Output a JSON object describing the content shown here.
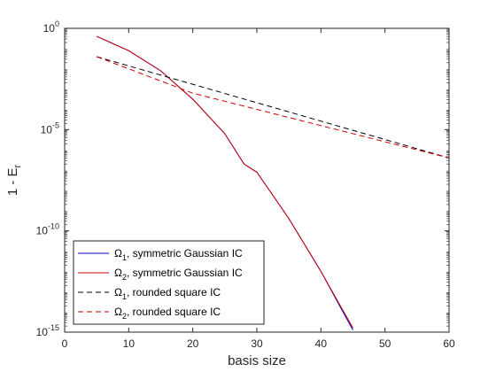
{
  "chart_data": {
    "type": "line",
    "xlabel": "basis size",
    "ylabel_main": "1 - E",
    "ylabel_sub": "r",
    "y_scale": "log",
    "xlim": [
      0,
      60
    ],
    "ylim_log10": [
      -15,
      0
    ],
    "x_ticks": [
      0,
      10,
      20,
      30,
      40,
      50,
      60
    ],
    "x_tick_labels": [
      "0",
      "10",
      "20",
      "30",
      "40",
      "50",
      "60"
    ],
    "y_ticks_log10": [
      -15,
      -10,
      -5,
      0
    ],
    "y_tick_labels": [
      {
        "base": "10",
        "exp": "-15"
      },
      {
        "base": "10",
        "exp": "-10"
      },
      {
        "base": "10",
        "exp": "-5"
      },
      {
        "base": "10",
        "exp": "0"
      }
    ],
    "grid": false,
    "legend_placement": "bottom-left",
    "series": [
      {
        "name_symbol": "Ω",
        "name_sub": "1",
        "name_rest": ", symmetric Gaussian IC",
        "color": "#0000cc",
        "dash": "solid",
        "x": [
          5,
          10,
          15,
          20,
          25,
          28,
          30,
          35,
          40,
          45
        ],
        "y_log10": [
          -0.4,
          -1.1,
          -2.1,
          -3.5,
          -5.2,
          -6.7,
          -7.1,
          -9.4,
          -12.0,
          -14.9
        ]
      },
      {
        "name_symbol": "Ω",
        "name_sub": "2",
        "name_rest": ", symmetric Gaussian IC",
        "color": "#cc0000",
        "dash": "solid",
        "x": [
          5,
          10,
          15,
          20,
          25,
          28,
          30,
          35,
          40,
          45
        ],
        "y_log10": [
          -0.4,
          -1.1,
          -2.1,
          -3.5,
          -5.2,
          -6.7,
          -7.1,
          -9.4,
          -12.0,
          -14.8
        ]
      },
      {
        "name_symbol": "Ω",
        "name_sub": "1",
        "name_rest": ", rounded square IC",
        "color": "#000000",
        "dash": "dashed",
        "x": [
          5,
          60
        ],
        "y_log10": [
          -1.4,
          -6.4
        ]
      },
      {
        "name_symbol": "Ω",
        "name_sub": "2",
        "name_rest": ", rounded square IC",
        "color": "#cc0000",
        "dash": "dashed",
        "x": [
          5,
          10,
          20,
          30,
          40,
          50,
          60
        ],
        "y_log10": [
          -1.4,
          -2.0,
          -3.2,
          -4.0,
          -4.8,
          -5.6,
          -6.4
        ]
      }
    ]
  }
}
